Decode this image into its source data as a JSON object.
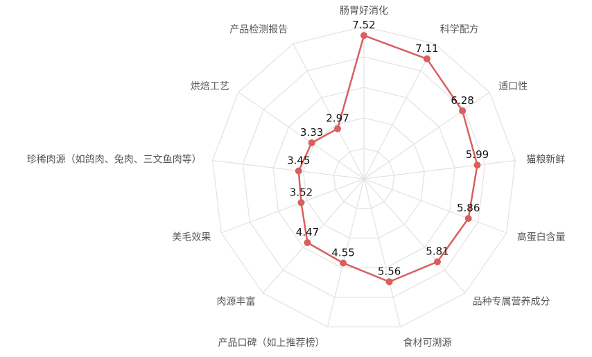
{
  "chart_data": {
    "type": "radar",
    "categories": [
      "肠胃好消化",
      "科学配方",
      "适口性",
      "猫粮新鲜",
      "高蛋白含量",
      "品种专属营养成分",
      "食材可溯源",
      "产品口碑（如上推荐榜）",
      "肉源丰富",
      "美毛效果",
      "珍稀肉源（如鸽肉、兔肉、三文鱼肉等）",
      "烘焙工艺",
      "产品检测报告"
    ],
    "values": [
      7.52,
      7.11,
      6.28,
      5.99,
      5.86,
      5.81,
      5.56,
      4.55,
      4.47,
      3.52,
      3.45,
      3.33,
      2.97
    ],
    "value_labels": [
      "7.52",
      "7.11",
      "6.28",
      "5.99",
      "5.86",
      "5.81",
      "5.56",
      "4.55",
      "4.47",
      "3.52",
      "3.45",
      "3.33",
      "2.97"
    ],
    "rmax": 8,
    "grid_rings": 5,
    "grid": true,
    "colors": {
      "series": "#d95f5f",
      "grid": "#e2e2e2",
      "label": "#555555",
      "value": "#111111"
    }
  }
}
